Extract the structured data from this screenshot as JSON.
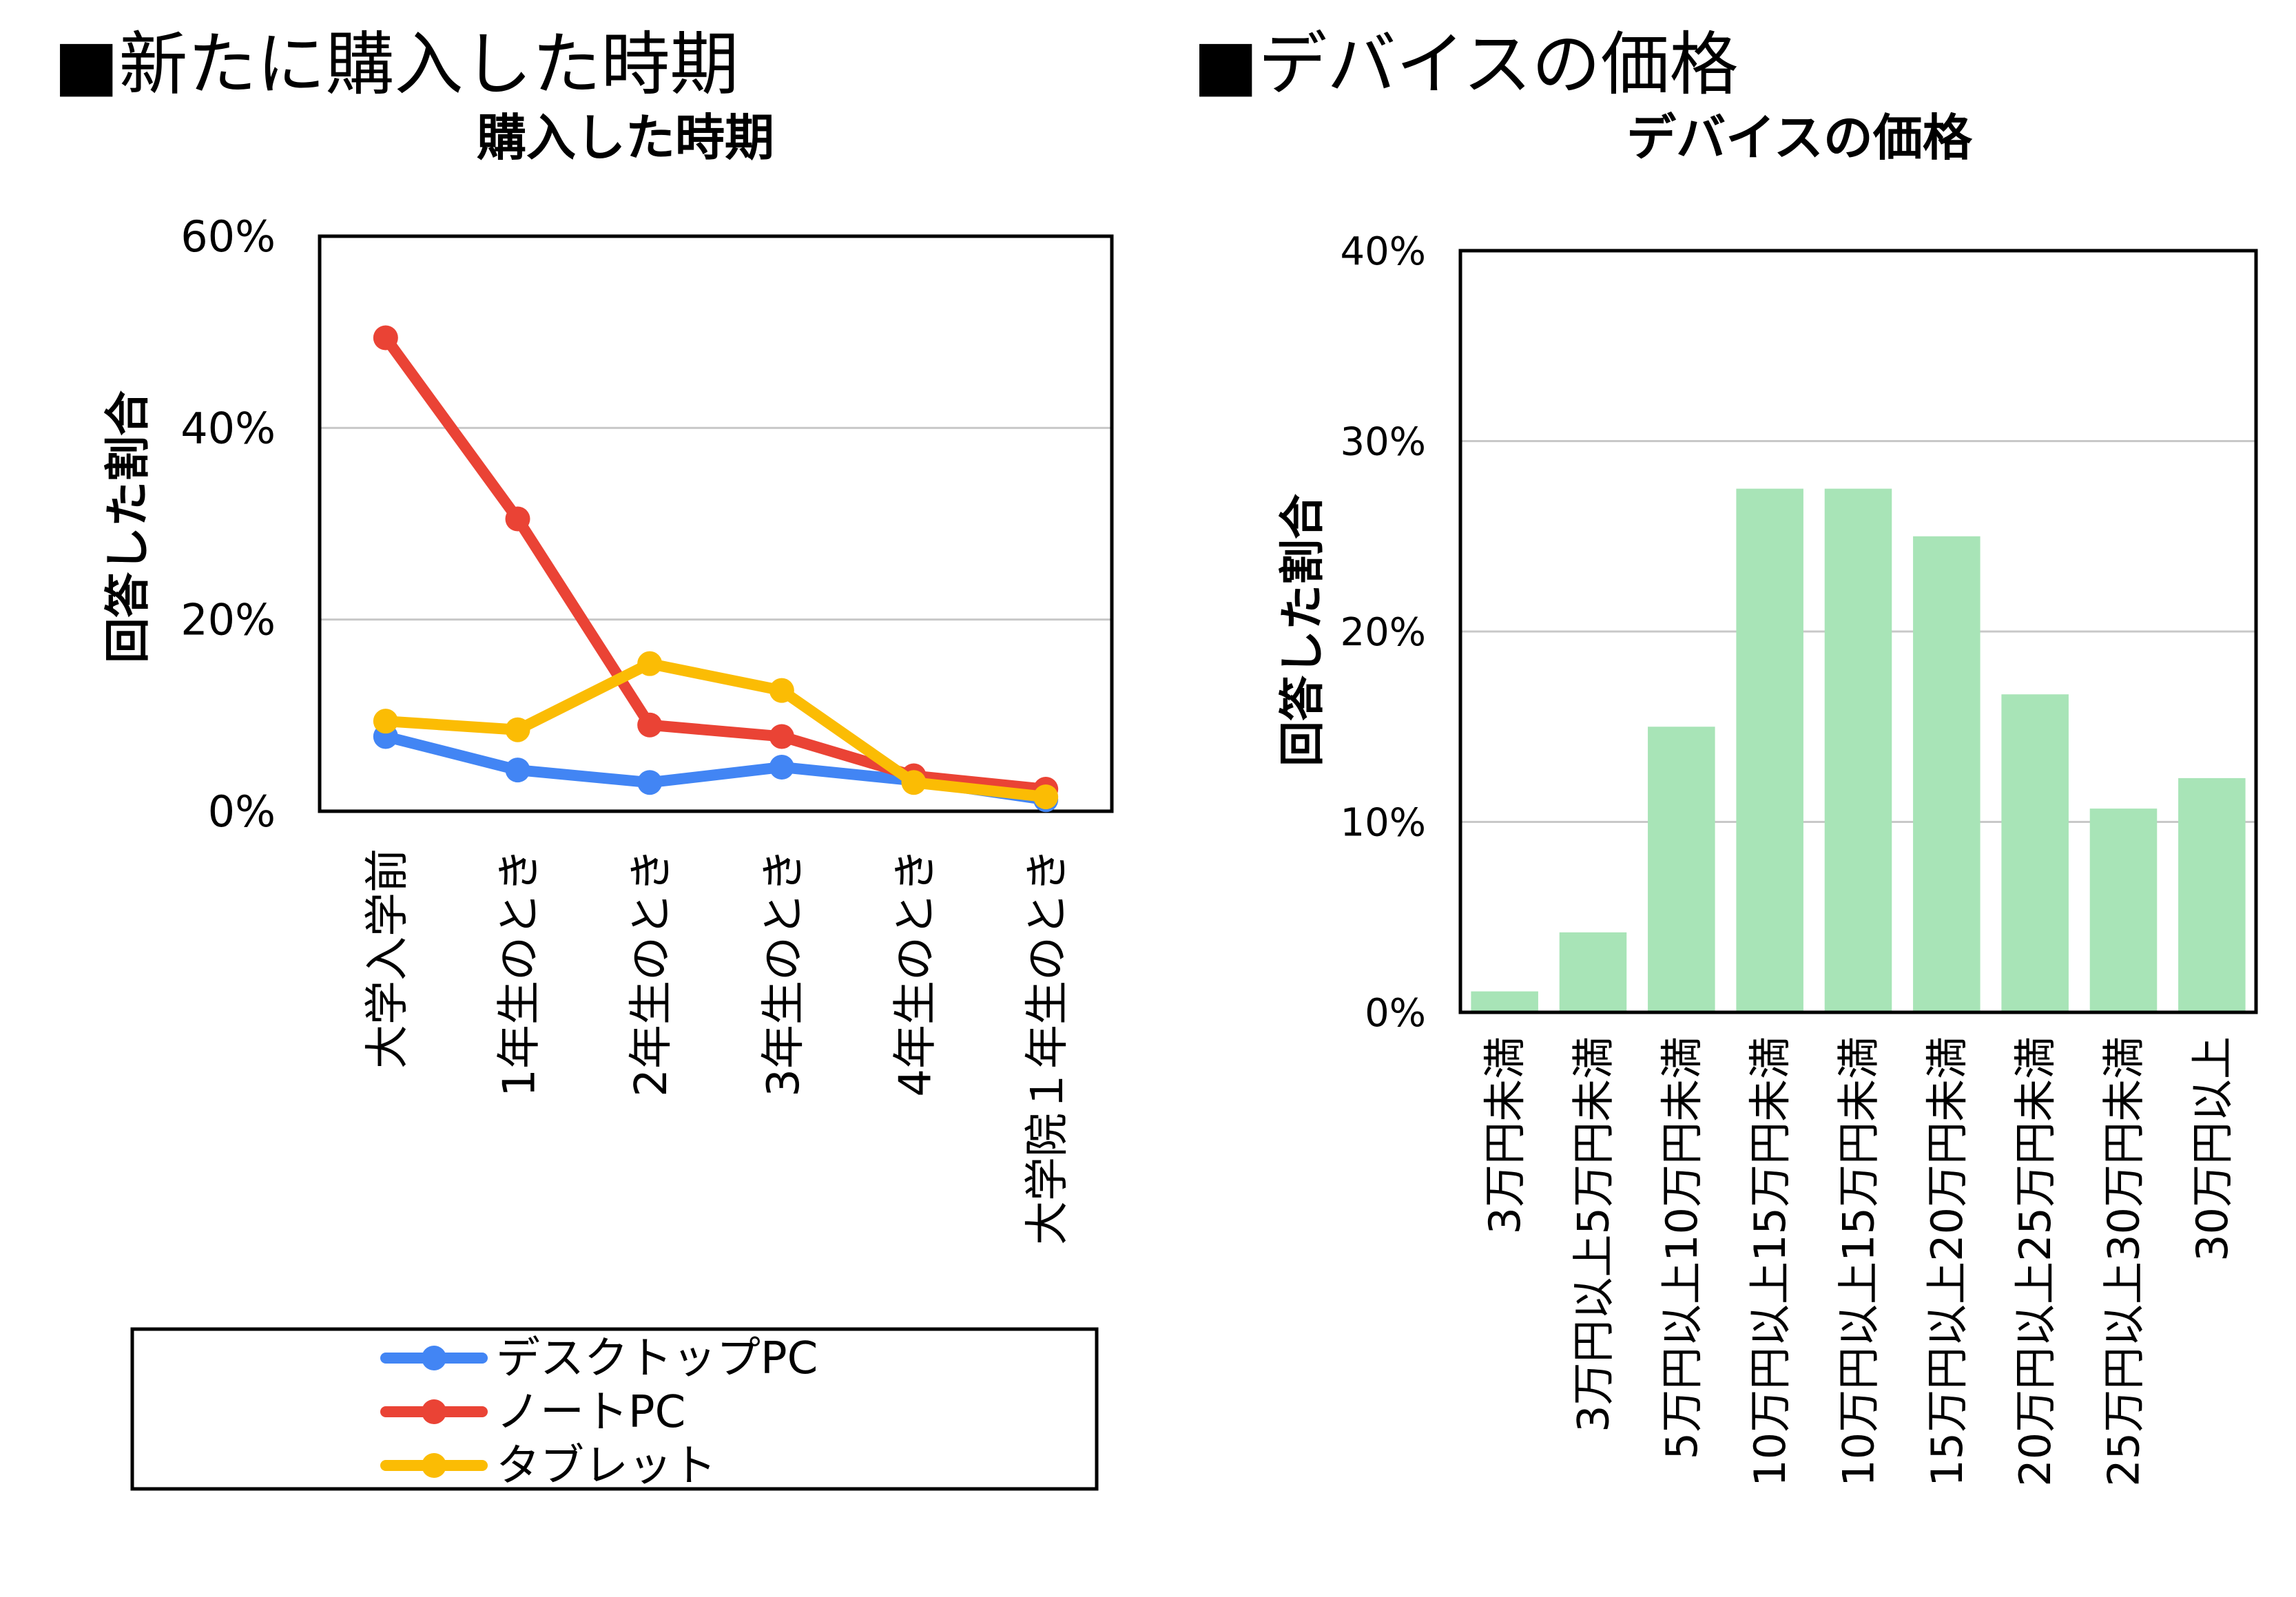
{
  "sections": [
    {
      "heading": "■新たに購入した時期"
    },
    {
      "heading": "■デバイスの価格"
    }
  ],
  "chart_data": [
    {
      "type": "line",
      "title": "購入した時期",
      "ylabel": "回答した割合",
      "xlabel": "",
      "categories": [
        "大学入学前",
        "1年生のとき",
        "2年生のとき",
        "3年生のとき",
        "4年生のとき",
        "大学院１年生のとき"
      ],
      "yticks": [
        "0%",
        "20%",
        "40%",
        "60%"
      ],
      "ylim": [
        0,
        60
      ],
      "grid": true,
      "legend_position": "bottom",
      "series": [
        {
          "name": "デスクトップPC",
          "color": "#4285f4",
          "values": [
            7.8,
            4.3,
            3.0,
            4.6,
            3.2,
            1.2
          ]
        },
        {
          "name": "ノートPC",
          "color": "#ea4335",
          "values": [
            49.4,
            30.5,
            9.0,
            7.8,
            3.7,
            2.3
          ]
        },
        {
          "name": "タブレット",
          "color": "#fbbc04",
          "values": [
            9.4,
            8.5,
            15.4,
            12.6,
            3.0,
            1.5
          ]
        }
      ]
    },
    {
      "type": "bar",
      "title": "デバイスの価格",
      "ylabel": "回答した割合",
      "xlabel": "",
      "categories": [
        "3万円未満",
        "3万円以上5万円未満",
        "5万円以上10万円未満",
        "10万円以上15万円未満",
        "10万円以上15万円未満",
        "15万円以上20万円未満",
        "20万円以上25万円未満",
        "25万円以上30万円未満",
        "30万円以上"
      ],
      "values": [
        1.1,
        4.2,
        15.0,
        27.5,
        27.5,
        25.0,
        16.7,
        10.7,
        12.3
      ],
      "yticks": [
        "0%",
        "10%",
        "20%",
        "30%",
        "40%"
      ],
      "ylim": [
        0,
        40
      ],
      "grid": true,
      "color": "#a8e4b7"
    }
  ]
}
